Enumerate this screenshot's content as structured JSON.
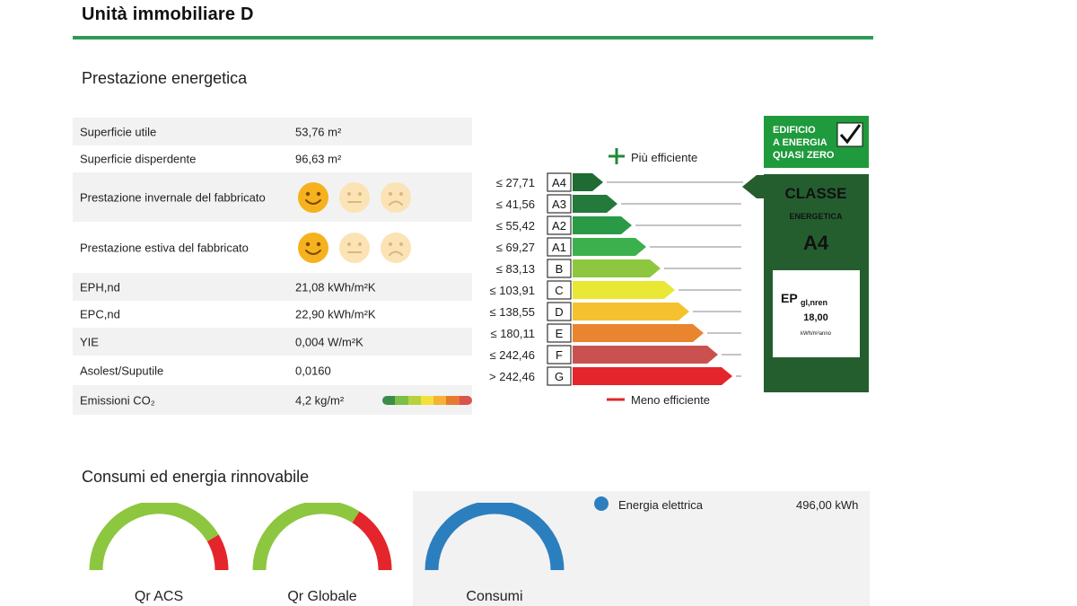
{
  "header": {
    "title": "Unità immobiliare D"
  },
  "sections": {
    "prestazione": "Prestazione energetica",
    "consumi": "Consumi ed energia rinnovabile"
  },
  "info_rows": [
    {
      "label": "Superficie utile",
      "value": "53,76 m²"
    },
    {
      "label": "Superficie disperdente",
      "value": "96,63 m²"
    },
    {
      "label": "Prestazione invernale del fabbricato",
      "faces": [
        "happy",
        "neutral",
        "sad"
      ],
      "selected": "happy"
    },
    {
      "label": "Prestazione estiva del fabbricato",
      "faces": [
        "happy",
        "neutral",
        "sad"
      ],
      "selected": "happy"
    },
    {
      "label": "EPH,nd",
      "value": "21,08 kWh/m²K"
    },
    {
      "label": "EPC,nd",
      "value": "22,90 kWh/m²K"
    },
    {
      "label": "YIE",
      "value": "0,004 W/m²K"
    },
    {
      "label": "Asolest/Suputile",
      "value": "0,0160"
    },
    {
      "label": "Emissioni CO₂",
      "value": "4,2 kg/m²"
    }
  ],
  "co2_scale_colors": [
    "#3d8c4a",
    "#7bbf44",
    "#b6d33c",
    "#f3e03b",
    "#f5b335",
    "#e67a2e",
    "#d9534f"
  ],
  "energy_scale": {
    "top_label": "Più efficiente",
    "bottom_label": "Meno efficiente",
    "classes": [
      {
        "threshold": "≤ 27,71",
        "label": "A4",
        "color": "#1f6b34"
      },
      {
        "threshold": "≤ 41,56",
        "label": "A3",
        "color": "#237a3a"
      },
      {
        "threshold": "≤ 55,42",
        "label": "A2",
        "color": "#2a9a47"
      },
      {
        "threshold": "≤ 69,27",
        "label": "A1",
        "color": "#3cb04c"
      },
      {
        "threshold": "≤ 83,13",
        "label": "B",
        "color": "#8dc63f"
      },
      {
        "threshold": "≤ 103,91",
        "label": "C",
        "color": "#e8e835"
      },
      {
        "threshold": "≤ 138,55",
        "label": "D",
        "color": "#f5c12e"
      },
      {
        "threshold": "≤ 180,11",
        "label": "E",
        "color": "#e9842f"
      },
      {
        "threshold": "≤ 242,46",
        "label": "F",
        "color": "#c95250"
      },
      {
        "threshold": "> 242,46",
        "label": "G",
        "color": "#e4252b"
      }
    ],
    "nzeb": "EDIFICIO A ENERGIA QUASI ZERO",
    "nzeb_lines": [
      "EDIFICIO",
      "A ENERGIA",
      "QUASI ZERO"
    ],
    "classe_label": "CLASSE",
    "energetica_label": "ENERGETICA",
    "current_class": "A4",
    "ep_label": "EP",
    "ep_sub": "gl,nren",
    "ep_value": "18,00",
    "ep_unit": "kWh/m²anno"
  },
  "gauges": [
    {
      "label": "Qr ACS",
      "green_fraction": 0.83,
      "colors": [
        "#8dc63f",
        "#e4252b"
      ]
    },
    {
      "label": "Qr Globale",
      "green_fraction": 0.68,
      "colors": [
        "#8dc63f",
        "#e4252b"
      ]
    },
    {
      "label": "Consumi",
      "green_fraction": 1.0,
      "colors": [
        "#2c7fbf",
        "#2c7fbf"
      ]
    }
  ],
  "legend": {
    "label": "Energia elettrica",
    "value": "496,00 kWh",
    "color": "#2c7fbf"
  }
}
